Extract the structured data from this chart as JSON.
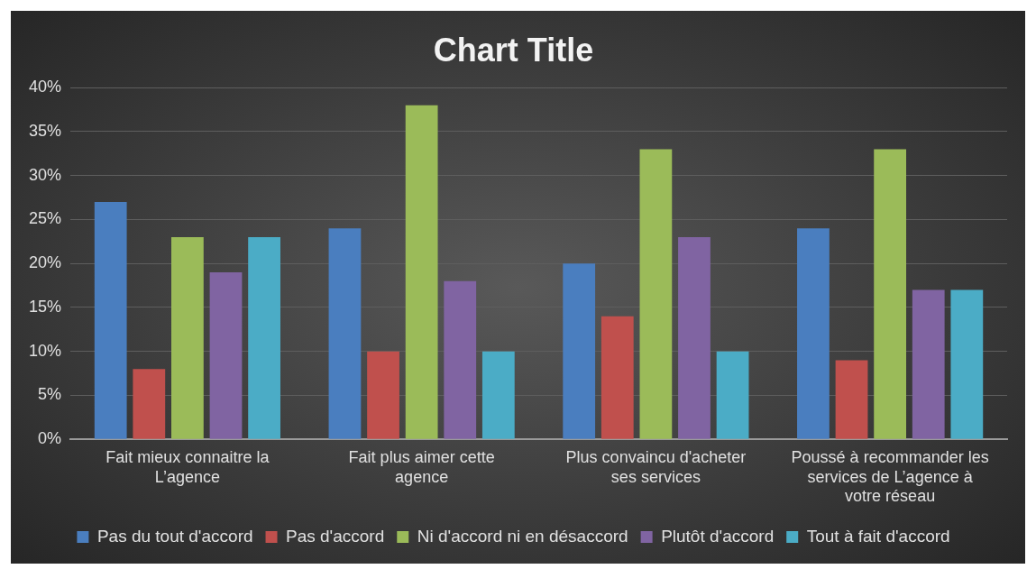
{
  "chart_data": {
    "type": "bar",
    "title": "Chart Title",
    "categories": [
      "Fait mieux connaitre la L’agence",
      "Fait plus aimer cette agence",
      "Plus convaincu d'acheter ses services",
      "Poussé à recommander les services de L’agence à votre réseau"
    ],
    "series": [
      {
        "name": "Pas du tout d'accord",
        "color": "#4a7ebf",
        "values": [
          27,
          24,
          20,
          24
        ]
      },
      {
        "name": "Pas d'accord",
        "color": "#c0504d",
        "values": [
          8,
          10,
          14,
          9
        ]
      },
      {
        "name": "Ni d'accord ni en désaccord",
        "color": "#9bbb59",
        "values": [
          23,
          38,
          33,
          33
        ]
      },
      {
        "name": "Plutôt d'accord",
        "color": "#8064a2",
        "values": [
          19,
          18,
          23,
          17
        ]
      },
      {
        "name": "Tout à fait d'accord",
        "color": "#4bacc6",
        "values": [
          23,
          10,
          10,
          17
        ]
      }
    ],
    "ylim": [
      0,
      40
    ],
    "yticks": [
      {
        "value": 0,
        "label": "0%"
      },
      {
        "value": 5,
        "label": "5%"
      },
      {
        "value": 10,
        "label": "10%"
      },
      {
        "value": 15,
        "label": "15%"
      },
      {
        "value": 20,
        "label": "20%"
      },
      {
        "value": 25,
        "label": "25%"
      },
      {
        "value": 30,
        "label": "30%"
      },
      {
        "value": 35,
        "label": "35%"
      },
      {
        "value": 40,
        "label": "40%"
      }
    ],
    "grid": "y",
    "legend": "bottom"
  }
}
